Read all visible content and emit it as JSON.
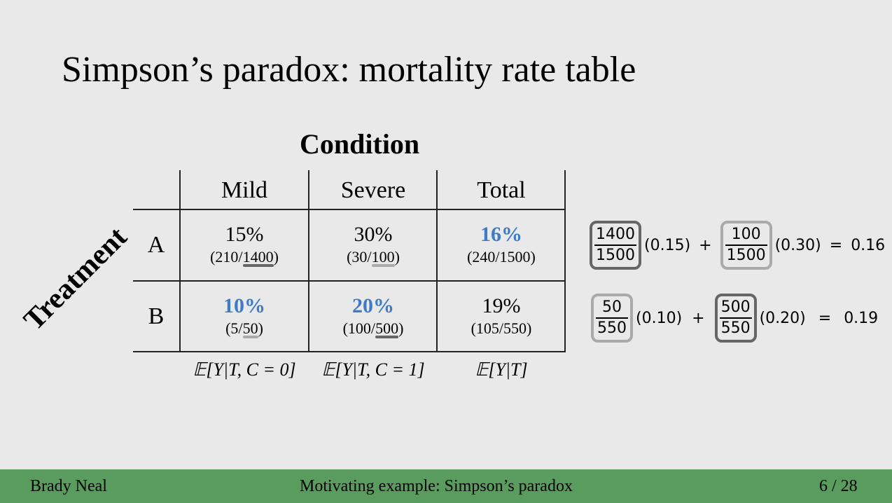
{
  "slide": {
    "title": "Simpson’s paradox: mortality rate table",
    "column_group_label": "Condition",
    "row_group_label": "Treatment"
  },
  "table": {
    "columns": [
      "Mild",
      "Severe",
      "Total"
    ],
    "rows": [
      {
        "label": "A",
        "cells": [
          {
            "pct": "15%",
            "frac_pre": "(210/",
            "frac_under": "1400",
            "frac_post": ")"
          },
          {
            "pct": "30%",
            "frac_pre": "(30/",
            "frac_under": "100",
            "frac_post": ")"
          },
          {
            "pct": "16%",
            "frac_pre": "(240/1500)",
            "frac_under": "",
            "frac_post": ""
          }
        ]
      },
      {
        "label": "B",
        "cells": [
          {
            "pct": "10%",
            "frac_pre": "(5/",
            "frac_under": "50",
            "frac_post": ")"
          },
          {
            "pct": "20%",
            "frac_pre": "(100/",
            "frac_under": "500",
            "frac_post": ")"
          },
          {
            "pct": "19%",
            "frac_pre": "(105/550)",
            "frac_under": "",
            "frac_post": ""
          }
        ]
      }
    ],
    "expectations": [
      "𝔼[Y|T, C = 0]",
      "𝔼[Y|T, C = 1]",
      "𝔼[Y|T]"
    ],
    "highlight_color": "#3d7bc8"
  },
  "equations": [
    {
      "t1_num": "1400",
      "t1_den": "1500",
      "t1_coef": "(0.15)",
      "op": "+",
      "t2_num": "100",
      "t2_den": "1500",
      "t2_coef": "(0.30)",
      "eq": "=",
      "result": "0.16"
    },
    {
      "t1_num": "50",
      "t1_den": "550",
      "t1_coef": "(0.10)",
      "op": "+",
      "t2_num": "500",
      "t2_den": "550",
      "t2_coef": "(0.20)",
      "eq": "=",
      "result": "0.19"
    }
  ],
  "footer": {
    "author": "Brady Neal",
    "section": "Motivating example: Simpson’s paradox",
    "page": "6 / 28",
    "color": "#5a9c5e"
  }
}
